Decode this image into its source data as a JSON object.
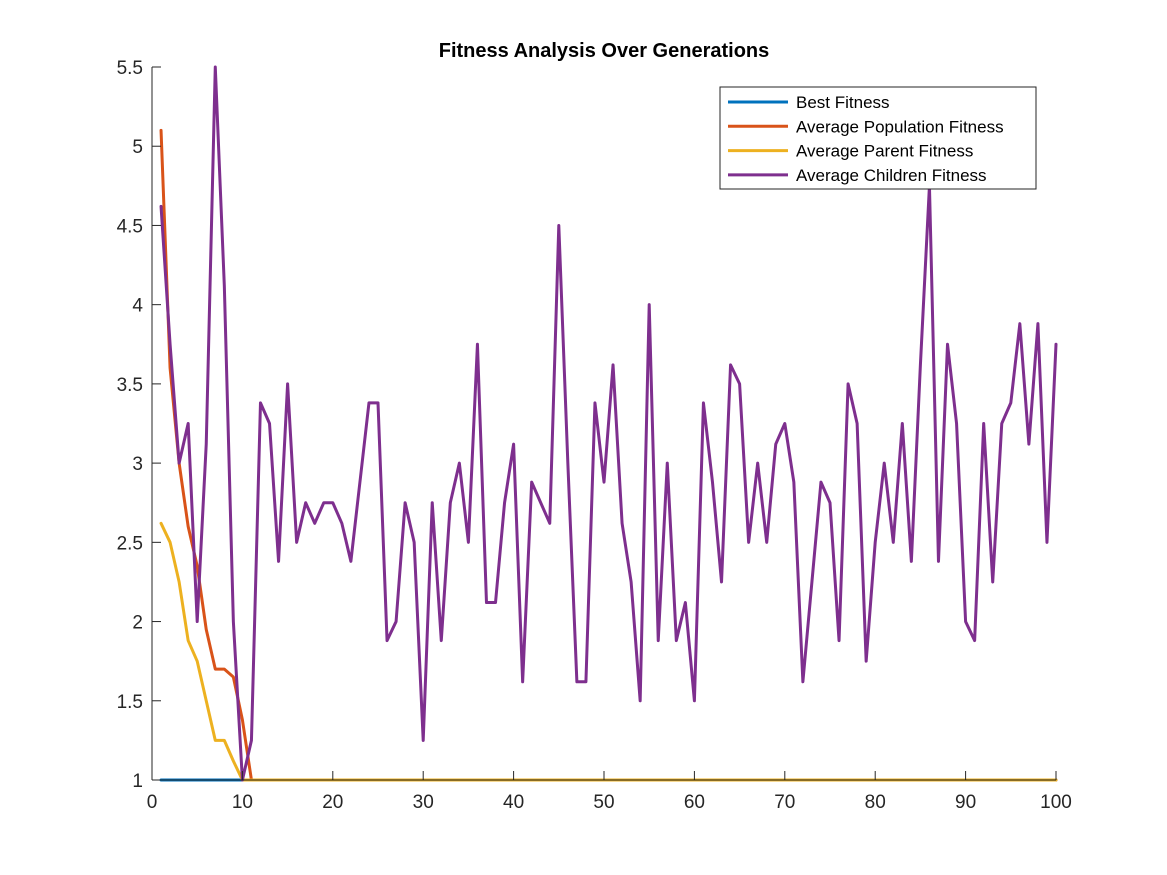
{
  "chart_data": {
    "type": "line",
    "title": "Fitness Analysis Over Generations",
    "xlabel": "",
    "ylabel": "",
    "xlim": [
      0,
      100
    ],
    "ylim": [
      1,
      5.5
    ],
    "xticks": [
      "0",
      "10",
      "20",
      "30",
      "40",
      "50",
      "60",
      "70",
      "80",
      "90",
      "100"
    ],
    "yticks": [
      "1",
      "1.5",
      "2",
      "2.5",
      "3",
      "3.5",
      "4",
      "4.5",
      "5",
      "5.5"
    ],
    "grid": false,
    "legend_position": "top-right",
    "x": [
      1,
      2,
      3,
      4,
      5,
      6,
      7,
      8,
      9,
      10,
      11,
      12,
      13,
      14,
      15,
      16,
      17,
      18,
      19,
      20,
      21,
      22,
      23,
      24,
      25,
      26,
      27,
      28,
      29,
      30,
      31,
      32,
      33,
      34,
      35,
      36,
      37,
      38,
      39,
      40,
      41,
      42,
      43,
      44,
      45,
      46,
      47,
      48,
      49,
      50,
      51,
      52,
      53,
      54,
      55,
      56,
      57,
      58,
      59,
      60,
      61,
      62,
      63,
      64,
      65,
      66,
      67,
      68,
      69,
      70,
      71,
      72,
      73,
      74,
      75,
      76,
      77,
      78,
      79,
      80,
      81,
      82,
      83,
      84,
      85,
      86,
      87,
      88,
      89,
      90,
      91,
      92,
      93,
      94,
      95,
      96,
      97,
      98,
      99,
      100
    ],
    "series": [
      {
        "name": "Best Fitness",
        "color": "#0072BD",
        "values": [
          1,
          1,
          1,
          1,
          1,
          1,
          1,
          1,
          1,
          1,
          1,
          1,
          1,
          1,
          1,
          1,
          1,
          1,
          1,
          1,
          1,
          1,
          1,
          1,
          1,
          1,
          1,
          1,
          1,
          1,
          1,
          1,
          1,
          1,
          1,
          1,
          1,
          1,
          1,
          1,
          1,
          1,
          1,
          1,
          1,
          1,
          1,
          1,
          1,
          1,
          1,
          1,
          1,
          1,
          1,
          1,
          1,
          1,
          1,
          1,
          1,
          1,
          1,
          1,
          1,
          1,
          1,
          1,
          1,
          1,
          1,
          1,
          1,
          1,
          1,
          1,
          1,
          1,
          1,
          1,
          1,
          1,
          1,
          1,
          1,
          1,
          1,
          1,
          1,
          1,
          1,
          1,
          1,
          1,
          1,
          1,
          1,
          1,
          1,
          1
        ]
      },
      {
        "name": "Average Population Fitness",
        "color": "#D95319",
        "values": [
          5.1,
          3.6,
          3.0,
          2.6,
          2.35,
          1.95,
          1.7,
          1.7,
          1.65,
          1.38,
          1,
          1,
          1,
          1,
          1,
          1,
          1,
          1,
          1,
          1,
          1,
          1,
          1,
          1,
          1,
          1,
          1,
          1,
          1,
          1,
          1,
          1,
          1,
          1,
          1,
          1,
          1,
          1,
          1,
          1,
          1,
          1,
          1,
          1,
          1,
          1,
          1,
          1,
          1,
          1,
          1,
          1,
          1,
          1,
          1,
          1,
          1,
          1,
          1,
          1,
          1,
          1,
          1,
          1,
          1,
          1,
          1,
          1,
          1,
          1,
          1,
          1,
          1,
          1,
          1,
          1,
          1,
          1,
          1,
          1,
          1,
          1,
          1,
          1,
          1,
          1,
          1,
          1,
          1,
          1,
          1,
          1,
          1,
          1,
          1,
          1,
          1,
          1,
          1,
          1
        ]
      },
      {
        "name": "Average Parent Fitness",
        "color": "#EDB120",
        "values": [
          2.62,
          2.5,
          2.25,
          1.88,
          1.75,
          1.5,
          1.25,
          1.25,
          1.12,
          1,
          1,
          1,
          1,
          1,
          1,
          1,
          1,
          1,
          1,
          1,
          1,
          1,
          1,
          1,
          1,
          1,
          1,
          1,
          1,
          1,
          1,
          1,
          1,
          1,
          1,
          1,
          1,
          1,
          1,
          1,
          1,
          1,
          1,
          1,
          1,
          1,
          1,
          1,
          1,
          1,
          1,
          1,
          1,
          1,
          1,
          1,
          1,
          1,
          1,
          1,
          1,
          1,
          1,
          1,
          1,
          1,
          1,
          1,
          1,
          1,
          1,
          1,
          1,
          1,
          1,
          1,
          1,
          1,
          1,
          1,
          1,
          1,
          1,
          1,
          1,
          1,
          1,
          1,
          1,
          1,
          1,
          1,
          1,
          1,
          1,
          1,
          1,
          1,
          1,
          1
        ]
      },
      {
        "name": "Average Children Fitness",
        "color": "#7E2F8E",
        "values": [
          4.62,
          3.75,
          3.0,
          3.25,
          2.0,
          3.12,
          5.5,
          4.12,
          2.0,
          1.0,
          1.25,
          3.38,
          3.25,
          2.38,
          3.5,
          2.5,
          2.75,
          2.62,
          2.75,
          2.75,
          2.62,
          2.38,
          2.88,
          3.38,
          3.38,
          1.88,
          2.0,
          2.75,
          2.5,
          1.25,
          2.75,
          1.88,
          2.75,
          3.0,
          2.5,
          3.75,
          2.12,
          2.12,
          2.75,
          3.12,
          1.62,
          2.88,
          2.75,
          2.62,
          4.5,
          3.0,
          1.62,
          1.62,
          3.38,
          2.88,
          3.62,
          2.62,
          2.25,
          1.5,
          4.0,
          1.88,
          3.0,
          1.88,
          2.12,
          1.5,
          3.38,
          2.88,
          2.25,
          3.62,
          3.5,
          2.5,
          3.0,
          2.5,
          3.12,
          3.25,
          2.88,
          1.62,
          2.25,
          2.88,
          2.75,
          1.88,
          3.5,
          3.25,
          1.75,
          2.5,
          3.0,
          2.5,
          3.25,
          2.38,
          3.62,
          4.75,
          2.38,
          3.75,
          3.25,
          2.0,
          1.88,
          3.25,
          2.25,
          3.25,
          3.38,
          3.88,
          3.12,
          3.88,
          2.5,
          3.75
        ]
      }
    ]
  }
}
